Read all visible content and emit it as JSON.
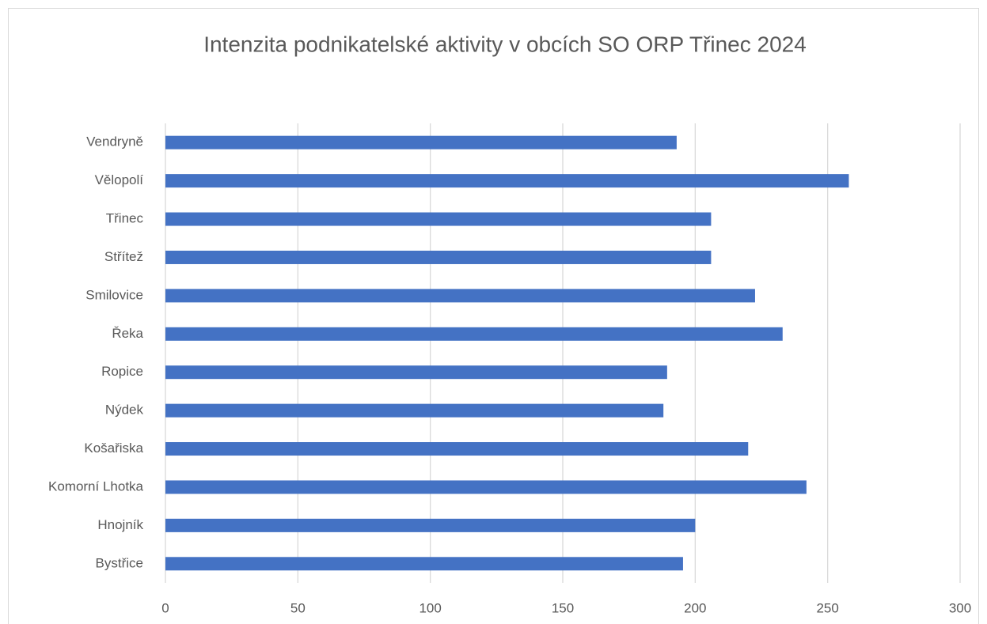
{
  "chart_data": {
    "type": "bar",
    "orientation": "horizontal",
    "title": "Intenzita podnikatelské aktivity  v obcích SO ORP Třinec 2024",
    "categories": [
      "Vendryně",
      "Vělopolí",
      "Třinec",
      "Střítež",
      "Smilovice",
      "Řeka",
      "Ropice",
      "Nýdek",
      "Košařiska",
      "Komorní Lhotka",
      "Hnojník",
      "Bystřice"
    ],
    "values": [
      193,
      258,
      206,
      206,
      222.6,
      233,
      189.4,
      188,
      220,
      242,
      200,
      195.4
    ],
    "color": "#4472c4",
    "xlim": [
      0,
      300
    ],
    "xticks": [
      0,
      50,
      100,
      150,
      200,
      250,
      300
    ],
    "grid": true
  }
}
